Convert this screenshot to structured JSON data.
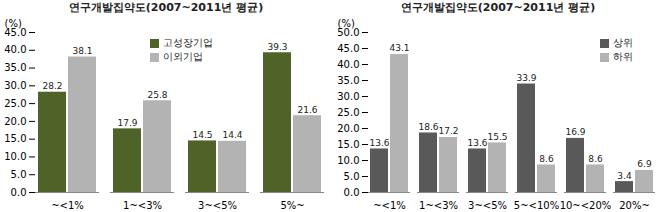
{
  "chart_data": [
    {
      "type": "bar",
      "title": "연구개발집약도(2007~2011년 평균)",
      "y_label": "(%)",
      "categories": [
        "~<1%",
        "1~<3%",
        "3~<5%",
        "5%~"
      ],
      "series": [
        {
          "name": "고성장기업",
          "color": "#4f6228",
          "values": [
            28.2,
            17.9,
            14.5,
            39.3
          ]
        },
        {
          "name": "이외기업",
          "color": "#b3b3b3",
          "values": [
            38.1,
            25.8,
            14.4,
            21.6
          ]
        }
      ],
      "ylim": [
        0,
        45
      ],
      "yticks": [
        {
          "value": 0,
          "label": "0.0"
        },
        {
          "value": 5,
          "label": "5.0"
        },
        {
          "value": 10,
          "label": "10.0"
        },
        {
          "value": 15,
          "label": "15.0"
        },
        {
          "value": 20,
          "label": "20.0"
        },
        {
          "value": 25,
          "label": "25.0"
        },
        {
          "value": 30,
          "label": "30.0"
        },
        {
          "value": 35,
          "label": "35.0"
        },
        {
          "value": 40,
          "label": "40.0"
        },
        {
          "value": 45,
          "label": "45.0"
        }
      ],
      "grid": false,
      "legend": "upper center",
      "data_labels": true
    },
    {
      "type": "bar",
      "title": "연구개발집약도(2007~2011년 평균)",
      "y_label": "(%)",
      "categories": [
        "~<1%",
        "1~<3%",
        "3~<5%",
        "5~<10%",
        "10~<20%",
        "20%~"
      ],
      "series": [
        {
          "name": "상위",
          "color": "#595959",
          "values": [
            13.6,
            18.6,
            13.6,
            33.9,
            16.9,
            3.4
          ]
        },
        {
          "name": "하위",
          "color": "#b3b3b3",
          "values": [
            43.1,
            17.2,
            15.5,
            8.6,
            8.6,
            6.9
          ]
        }
      ],
      "ylim": [
        0,
        50
      ],
      "yticks": [
        {
          "value": 0,
          "label": "0.0"
        },
        {
          "value": 5,
          "label": "5.0"
        },
        {
          "value": 10,
          "label": "10.0"
        },
        {
          "value": 15,
          "label": "15.0"
        },
        {
          "value": 20,
          "label": "20.0"
        },
        {
          "value": 25,
          "label": "25.0"
        },
        {
          "value": 30,
          "label": "30.0"
        },
        {
          "value": 35,
          "label": "35.0"
        },
        {
          "value": 40,
          "label": "40.0"
        },
        {
          "value": 45,
          "label": "45.0"
        },
        {
          "value": 50,
          "label": "50.0"
        }
      ],
      "grid": false,
      "legend": "upper right",
      "data_labels": true
    }
  ]
}
